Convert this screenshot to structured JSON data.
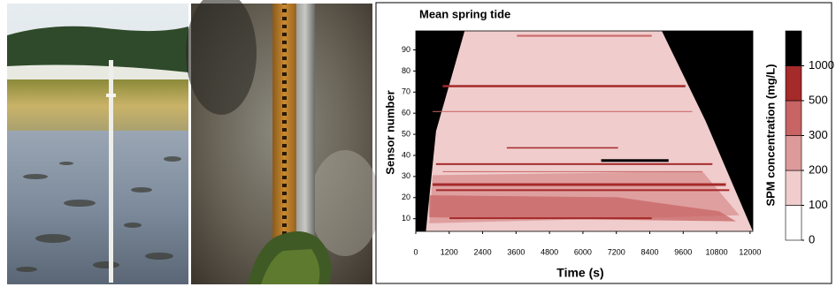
{
  "chart_data": {
    "type": "contour",
    "title": "Mean spring tide",
    "xlabel": "Time (s)",
    "ylabel": "Sensor number",
    "xlim": [
      0,
      12100
    ],
    "xticks": [
      0,
      1200,
      2400,
      3600,
      4800,
      6000,
      7200,
      8400,
      9600,
      10800,
      12000
    ],
    "ylim": [
      4,
      99
    ],
    "yticks": [
      10,
      20,
      30,
      40,
      50,
      60,
      70,
      80,
      90
    ],
    "background_color": "#000000",
    "colorbar": {
      "label": "SPM concentration (mg/L)",
      "levels": [
        0,
        100,
        200,
        300,
        500,
        1000
      ],
      "colors": [
        "#ffffff",
        "#f0cccc",
        "#dd9a9a",
        "#c86464",
        "#a52a2a",
        "#000000"
      ]
    }
  }
}
